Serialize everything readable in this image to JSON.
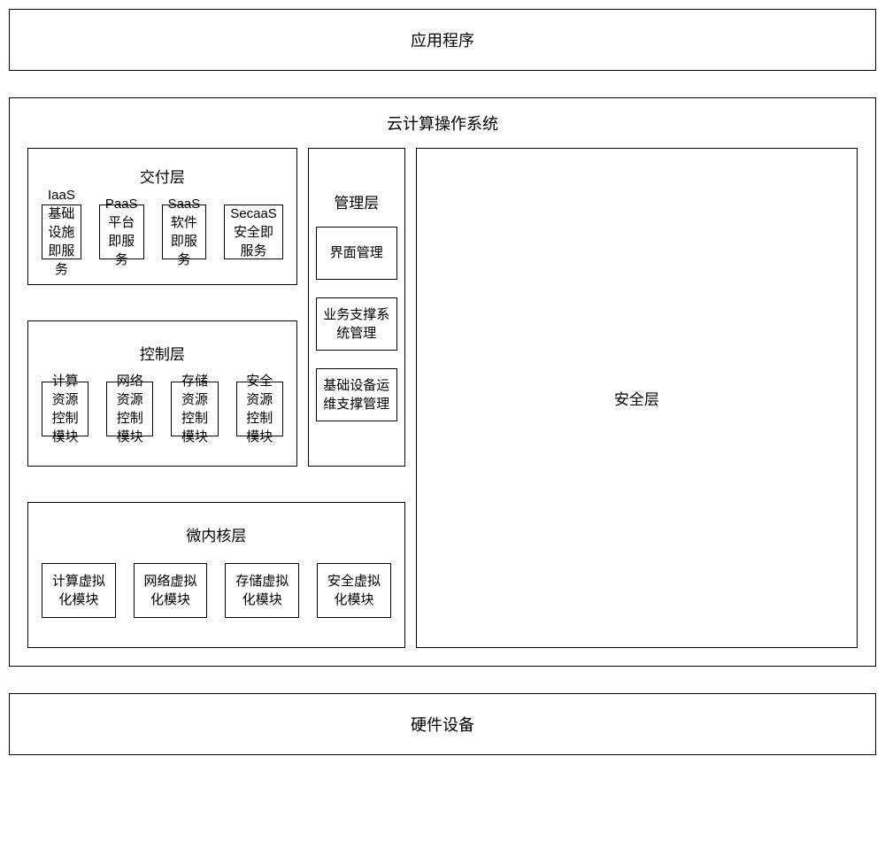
{
  "top": {
    "label": "应用程序"
  },
  "main": {
    "title": "云计算操作系统",
    "delivery": {
      "title": "交付层",
      "modules": [
        {
          "line1": "IaaS",
          "line2": "基础设施即服务"
        },
        {
          "line1": "PaaS",
          "line2": "平台即服务"
        },
        {
          "line1": "SaaS",
          "line2": "软件即服务"
        },
        {
          "line1": "SecaaS",
          "line2": "安全即服务"
        }
      ]
    },
    "control": {
      "title": "控制层",
      "modules": [
        {
          "line1": "计算资源",
          "line2": "控制模块"
        },
        {
          "line1": "网络资源",
          "line2": "控制模块"
        },
        {
          "line1": "存储资源",
          "line2": "控制模块"
        },
        {
          "line1": "安全资源",
          "line2": "控制模块"
        }
      ]
    },
    "kernel": {
      "title": "微内核层",
      "modules": [
        {
          "label": "计算虚拟化模块"
        },
        {
          "label": "网络虚拟化模块"
        },
        {
          "label": "存储虚拟化模块"
        },
        {
          "label": "安全虚拟化模块"
        }
      ]
    },
    "management": {
      "title": "管理层",
      "modules": [
        {
          "label": "界面管理"
        },
        {
          "label": "业务支撑系统管理"
        },
        {
          "label": "基础设备运维支撑管理"
        }
      ]
    },
    "security": {
      "title": "安全层"
    }
  },
  "bottom": {
    "label": "硬件设备"
  },
  "style": {
    "border_color": "#000000",
    "background": "#ffffff",
    "font_family": "SimSun",
    "title_fontsize": 18,
    "label_fontsize": 15
  }
}
